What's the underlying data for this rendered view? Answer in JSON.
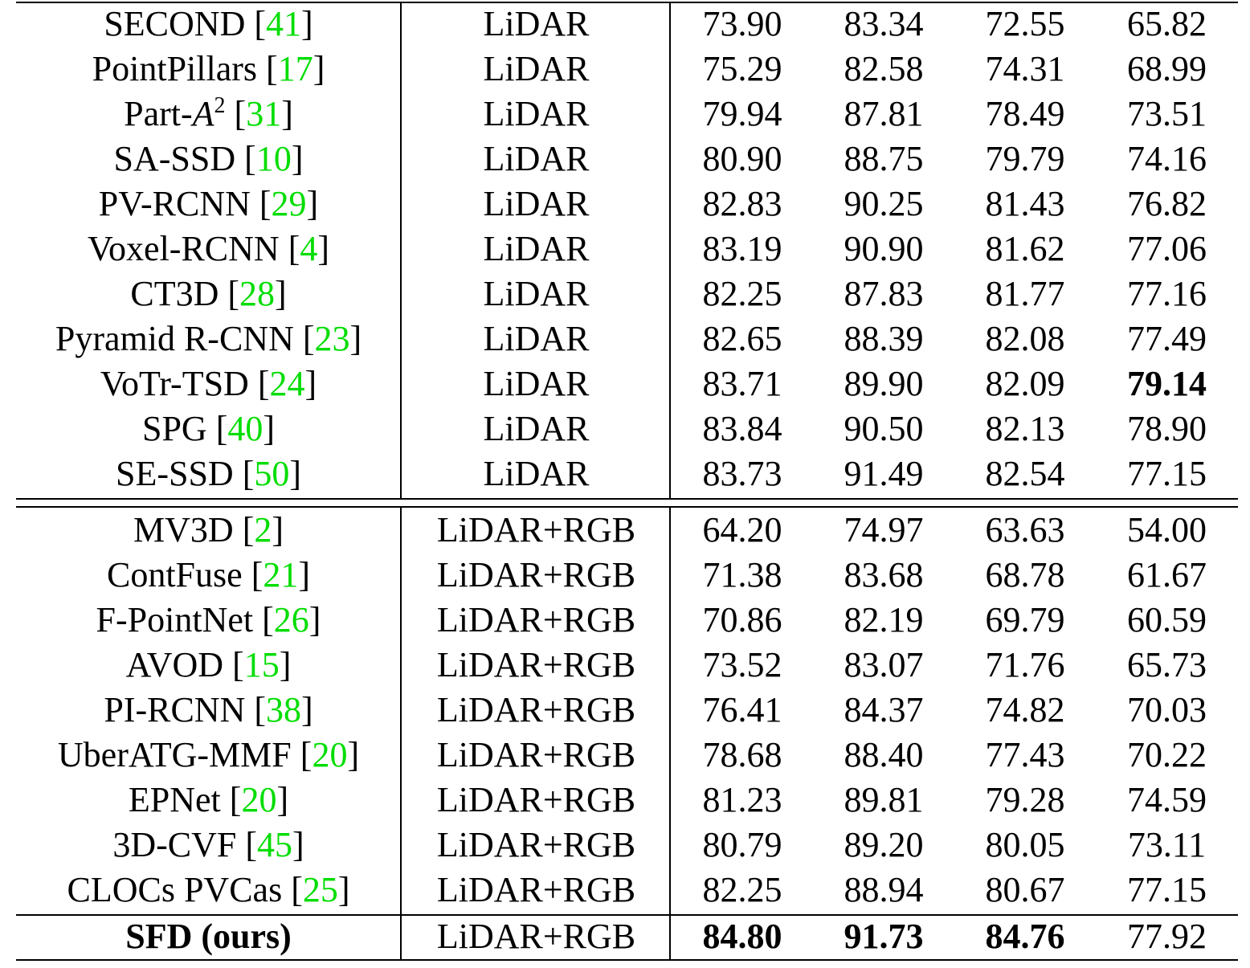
{
  "table": {
    "groups": [
      {
        "rows": [
          {
            "method": "SECOND",
            "ref": "41",
            "modality": "LiDAR",
            "values": [
              "73.90",
              "83.34",
              "72.55",
              "65.82"
            ]
          },
          {
            "method": "PointPillars",
            "ref": "17",
            "modality": "LiDAR",
            "values": [
              "75.29",
              "82.58",
              "74.31",
              "68.99"
            ]
          },
          {
            "method": "Part-",
            "method_math": "A",
            "method_sup": "2",
            "ref": "31",
            "modality": "LiDAR",
            "values": [
              "79.94",
              "87.81",
              "78.49",
              "73.51"
            ]
          },
          {
            "method": "SA-SSD",
            "ref": "10",
            "modality": "LiDAR",
            "values": [
              "80.90",
              "88.75",
              "79.79",
              "74.16"
            ]
          },
          {
            "method": "PV-RCNN",
            "ref": "29",
            "modality": "LiDAR",
            "values": [
              "82.83",
              "90.25",
              "81.43",
              "76.82"
            ]
          },
          {
            "method": "Voxel-RCNN",
            "ref": "4",
            "modality": "LiDAR",
            "values": [
              "83.19",
              "90.90",
              "81.62",
              "77.06"
            ]
          },
          {
            "method": "CT3D",
            "ref": "28",
            "modality": "LiDAR",
            "values": [
              "82.25",
              "87.83",
              "81.77",
              "77.16"
            ]
          },
          {
            "method": "Pyramid R-CNN",
            "ref": "23",
            "modality": "LiDAR",
            "values": [
              "82.65",
              "88.39",
              "82.08",
              "77.49"
            ]
          },
          {
            "method": "VoTr-TSD",
            "ref": "24",
            "modality": "LiDAR",
            "values": [
              "83.71",
              "89.90",
              "82.09",
              "79.14"
            ],
            "bold_values": [
              3
            ]
          },
          {
            "method": "SPG",
            "ref": "40",
            "modality": "LiDAR",
            "values": [
              "83.84",
              "90.50",
              "82.13",
              "78.90"
            ]
          },
          {
            "method": "SE-SSD",
            "ref": "50",
            "modality": "LiDAR",
            "values": [
              "83.73",
              "91.49",
              "82.54",
              "77.15"
            ]
          }
        ]
      },
      {
        "rows": [
          {
            "method": "MV3D",
            "ref": "2",
            "modality": "LiDAR+RGB",
            "values": [
              "64.20",
              "74.97",
              "63.63",
              "54.00"
            ]
          },
          {
            "method": "ContFuse",
            "ref": "21",
            "modality": "LiDAR+RGB",
            "values": [
              "71.38",
              "83.68",
              "68.78",
              "61.67"
            ]
          },
          {
            "method": "F-PointNet",
            "ref": "26",
            "modality": "LiDAR+RGB",
            "values": [
              "70.86",
              "82.19",
              "69.79",
              "60.59"
            ]
          },
          {
            "method": "AVOD",
            "ref": "15",
            "modality": "LiDAR+RGB",
            "values": [
              "73.52",
              "83.07",
              "71.76",
              "65.73"
            ]
          },
          {
            "method": "PI-RCNN",
            "ref": "38",
            "modality": "LiDAR+RGB",
            "values": [
              "76.41",
              "84.37",
              "74.82",
              "70.03"
            ]
          },
          {
            "method": "UberATG-MMF",
            "ref": "20",
            "modality": "LiDAR+RGB",
            "values": [
              "78.68",
              "88.40",
              "77.43",
              "70.22"
            ]
          },
          {
            "method": "EPNet",
            "ref": "20",
            "modality": "LiDAR+RGB",
            "values": [
              "81.23",
              "89.81",
              "79.28",
              "74.59"
            ]
          },
          {
            "method": "3D-CVF",
            "ref": "45",
            "modality": "LiDAR+RGB",
            "values": [
              "80.79",
              "89.20",
              "80.05",
              "73.11"
            ]
          },
          {
            "method": "CLOCs PVCas",
            "ref": "25",
            "modality": "LiDAR+RGB",
            "values": [
              "82.25",
              "88.94",
              "80.67",
              "77.15"
            ]
          }
        ]
      },
      {
        "rows": [
          {
            "method": "SFD (ours)",
            "method_bold": true,
            "modality": "LiDAR+RGB",
            "values": [
              "84.80",
              "91.73",
              "84.76",
              "77.92"
            ],
            "bold_values": [
              0,
              1,
              2
            ]
          }
        ]
      }
    ],
    "colors": {
      "text": "#000000",
      "citation": "#00dd00",
      "rule": "#000000"
    }
  }
}
